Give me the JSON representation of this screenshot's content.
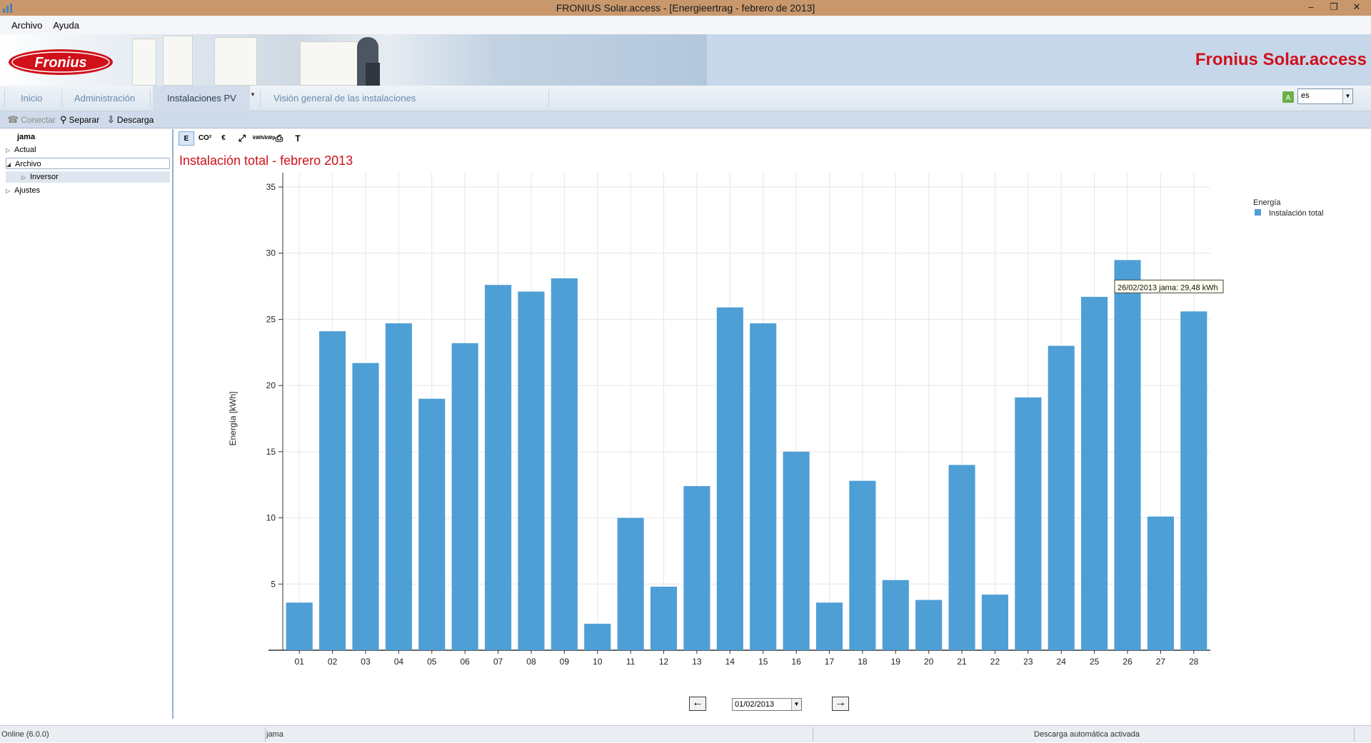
{
  "window": {
    "title": "FRONIUS Solar.access - [Energieertrag - febrero de 2013]",
    "controls": {
      "minimize": "–",
      "restore": "❐",
      "close": "✕"
    }
  },
  "menu": [
    "Archivo",
    "Ayuda"
  ],
  "banner": {
    "logo_text": "Fronius",
    "product_title": "Fronius Solar.access"
  },
  "nav": {
    "tabs": [
      "Inicio",
      "Administración",
      "Instalaciones PV",
      "Visión general de las instalaciones"
    ],
    "active_tab": "Instalaciones PV",
    "language": "es"
  },
  "toolbar": {
    "connect": "Conectar",
    "disconnect": "Separar",
    "download": "Descarga"
  },
  "tree": {
    "root": "jama",
    "items": [
      "Actual",
      "Archivo",
      "Inversor",
      "Ajustes"
    ]
  },
  "chart_tools": [
    "E",
    "CO²",
    "€",
    "⤢",
    "kWh/kWp",
    "⎙",
    "T"
  ],
  "chart_data": {
    "type": "bar",
    "title": "Instalación total - febrero 2013",
    "ylabel": "Energía [kWh]",
    "xlabel": "",
    "ylim": [
      0,
      35
    ],
    "yticks": [
      5,
      10,
      15,
      20,
      25,
      30,
      35
    ],
    "grid": true,
    "legend_position": "top-right",
    "legend_title": "Energía",
    "categories": [
      "01",
      "02",
      "03",
      "04",
      "05",
      "06",
      "07",
      "08",
      "09",
      "10",
      "11",
      "12",
      "13",
      "14",
      "15",
      "16",
      "17",
      "18",
      "19",
      "20",
      "21",
      "22",
      "23",
      "24",
      "25",
      "26",
      "27",
      "28"
    ],
    "series": [
      {
        "name": "Instalación total",
        "color": "#4e9fd5",
        "values": [
          3.6,
          24.1,
          21.7,
          24.7,
          19.0,
          23.2,
          27.6,
          27.1,
          28.1,
          2.0,
          10.0,
          4.8,
          12.4,
          25.9,
          24.7,
          15.0,
          3.6,
          12.8,
          5.3,
          3.8,
          14.0,
          4.2,
          19.1,
          23.0,
          26.7,
          29.48,
          10.1,
          25.6
        ]
      }
    ],
    "tooltip": {
      "text": "26/02/2013 jama: 29,48 kWh",
      "category": "26"
    }
  },
  "date_nav": {
    "prev": "←",
    "date": "01/02/2013",
    "next": "→"
  },
  "status": {
    "connection": "Online (6.0.0)",
    "plant": "jama",
    "message": "Descarga automática activada"
  },
  "colors": {
    "brand_red": "#d0101a",
    "bar_blue": "#4e9fd5",
    "title_bar": "#c8986c"
  }
}
